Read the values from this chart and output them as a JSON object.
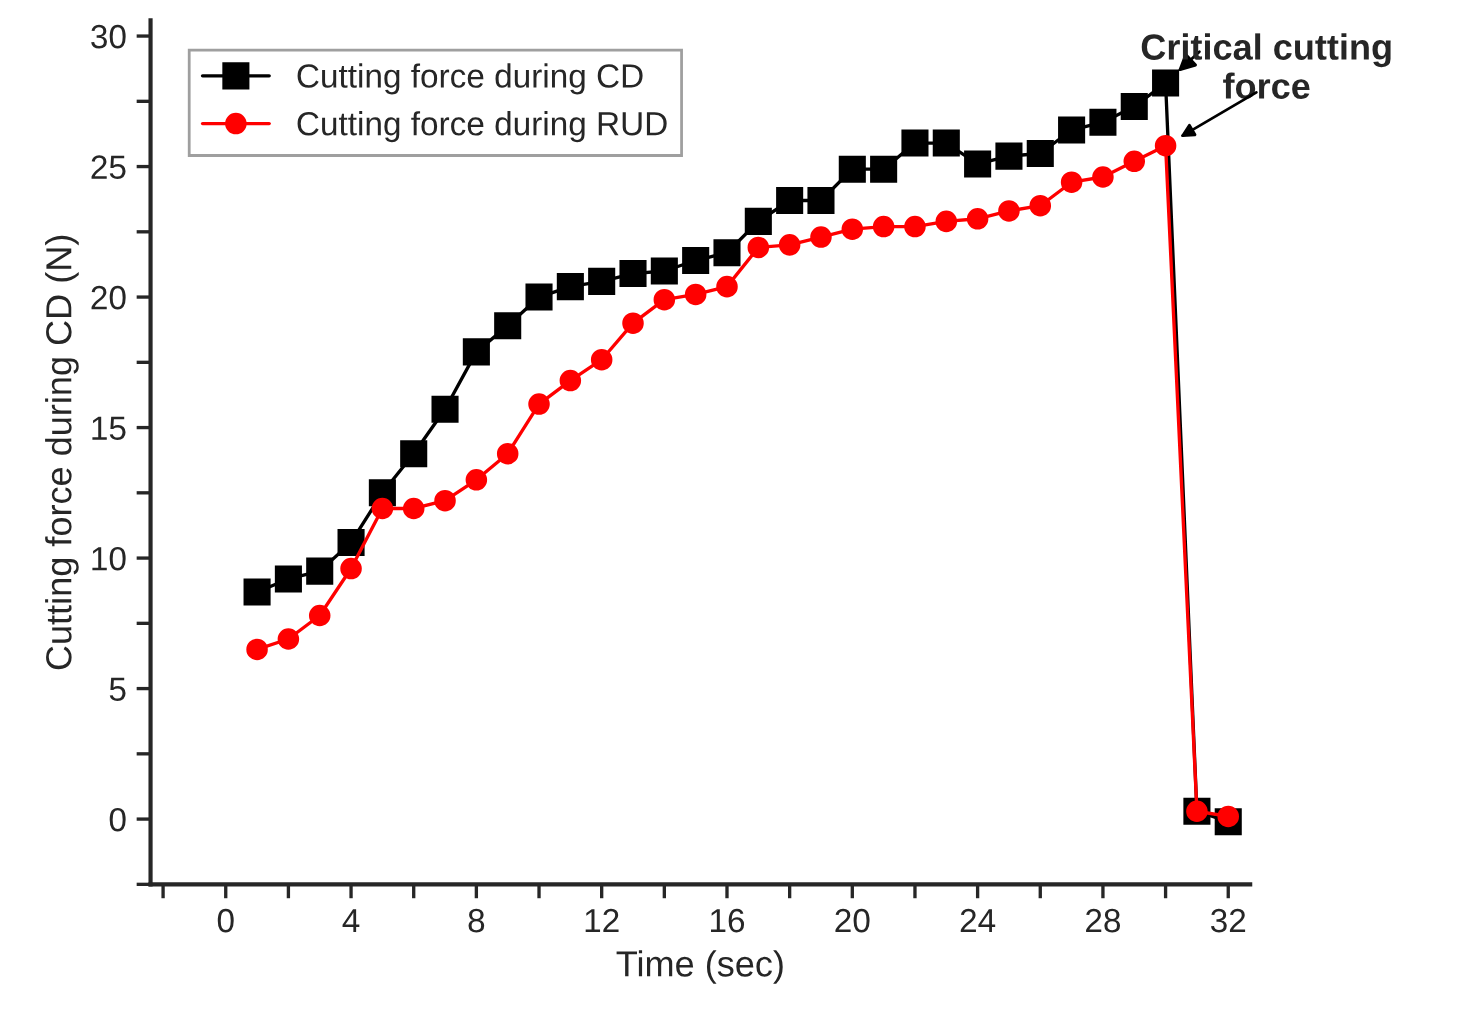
{
  "chart_data": {
    "type": "line",
    "xlabel": "Time (sec)",
    "ylabel": "Cutting force during CD (N)",
    "x": [
      1,
      2,
      3,
      4,
      5,
      6,
      7,
      8,
      9,
      10,
      11,
      12,
      13,
      14,
      15,
      16,
      17,
      18,
      19,
      20,
      21,
      22,
      23,
      24,
      25,
      26,
      27,
      28,
      29,
      30,
      31,
      32
    ],
    "series": [
      {
        "name": "Cutting force during CD",
        "color": "#000000",
        "marker": "square",
        "values": [
          8.7,
          9.2,
          9.5,
          10.6,
          12.5,
          14,
          15.7,
          17.9,
          18.9,
          20,
          20.4,
          20.6,
          20.9,
          21,
          21.4,
          21.7,
          22.9,
          23.7,
          23.7,
          24.9,
          24.9,
          25.9,
          25.9,
          25.1,
          25.4,
          25.5,
          26.4,
          26.7,
          27.3,
          28.2,
          0.3,
          -0.1
        ]
      },
      {
        "name": "Cutting force during RUD",
        "color": "#ff0000",
        "marker": "circle",
        "values": [
          6.5,
          6.9,
          7.8,
          9.6,
          11.9,
          11.9,
          12.2,
          13,
          14,
          15.9,
          16.8,
          17.6,
          19,
          19.9,
          20.1,
          20.4,
          21.9,
          22,
          22.3,
          22.6,
          22.7,
          22.7,
          22.9,
          23,
          23.3,
          23.5,
          24.4,
          24.6,
          25.2,
          25.8,
          0.3,
          0.1
        ]
      }
    ],
    "xlim": [
      -2.4,
      32.7
    ],
    "ylim": [
      -2.5,
      30.6
    ],
    "xticks": [
      {
        "value": -2,
        "label": null
      },
      0,
      {
        "value": 2,
        "label": null
      },
      4,
      {
        "value": 6,
        "label": null
      },
      8,
      {
        "value": 10,
        "label": null
      },
      12,
      {
        "value": 14,
        "label": null
      },
      16,
      {
        "value": 18,
        "label": null
      },
      20,
      {
        "value": 22,
        "label": null
      },
      24,
      {
        "value": 26,
        "label": null
      },
      28,
      {
        "value": 30,
        "label": null
      },
      32
    ],
    "yticks": [
      {
        "value": -2.5,
        "label": null
      },
      0,
      {
        "value": 2.5,
        "label": null
      },
      5,
      {
        "value": 7.5,
        "label": null
      },
      10,
      {
        "value": 12.5,
        "label": null
      },
      15,
      {
        "value": 17.5,
        "label": null
      },
      20,
      {
        "value": 22.5,
        "label": null
      },
      25,
      {
        "value": 27.5,
        "label": null
      },
      30
    ],
    "annotations": [
      {
        "text": "Critical cutting\nforce",
        "x": 30,
        "y": 28.2
      }
    ],
    "grid": false,
    "legend": "top left",
    "line_style": "solid"
  }
}
